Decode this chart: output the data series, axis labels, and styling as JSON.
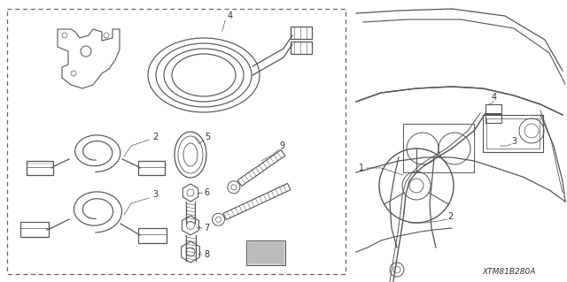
{
  "background_color": "#ffffff",
  "line_color": "#555555",
  "text_color": "#333333",
  "diagram_code": "XTM81B280A",
  "fig_w": 6.4,
  "fig_h": 3.19,
  "dpi": 100
}
